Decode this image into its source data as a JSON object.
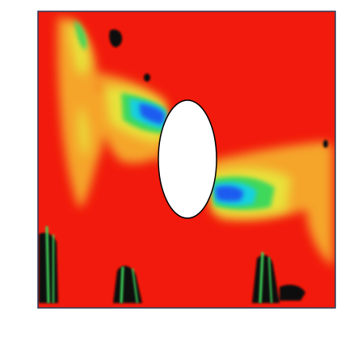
{
  "image": {
    "kind": "flow-field-contour",
    "colors": {
      "background": "#ffffff",
      "field_base": "#f21a0c",
      "high": "#f21a0c",
      "mid_orange": "#f5a52a",
      "mid_yellow": "#e8e23a",
      "mid_green": "#3fd85a",
      "low_cyan": "#19d0e0",
      "low_blue": "#1a5cf0",
      "dark": "#0b0b0b",
      "frame": "#2a3a55",
      "obstacle_fill": "#ffffff",
      "obstacle_edge": "#000000"
    }
  }
}
